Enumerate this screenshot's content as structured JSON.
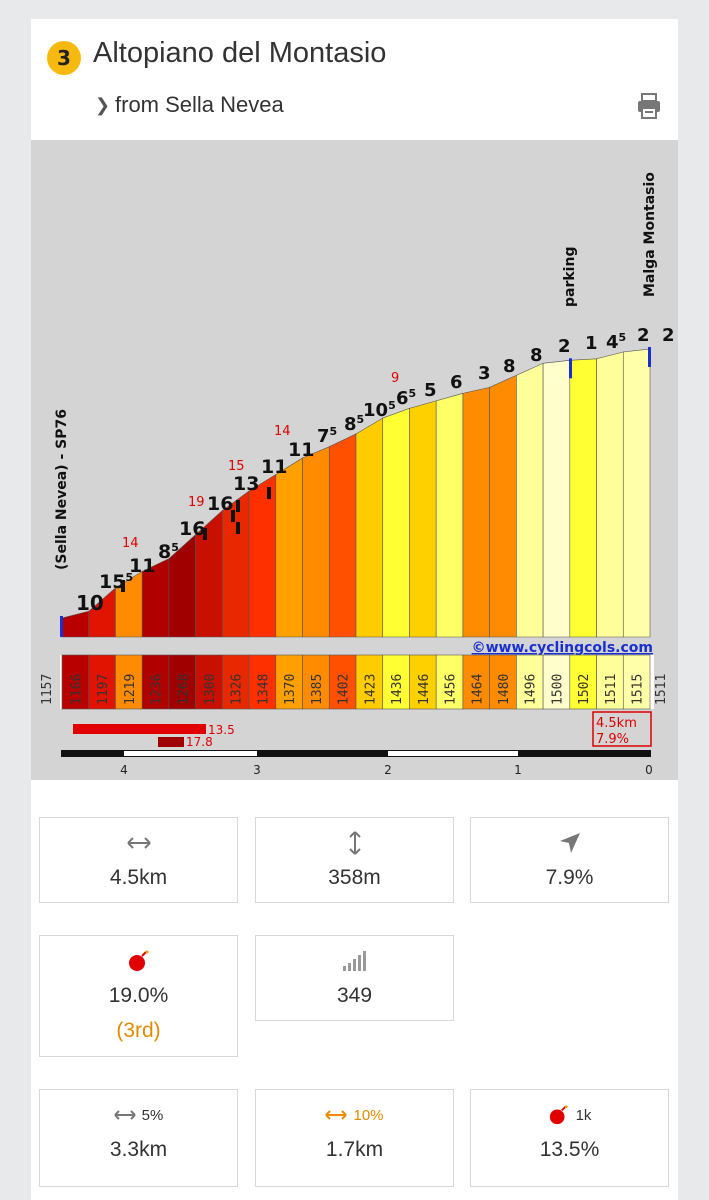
{
  "header": {
    "number": "3",
    "title": "Altopiano del Montasio",
    "subtitle": "from Sella Nevea"
  },
  "profile": {
    "start_label": "(Sella Nevea) - SP76",
    "end_label": "Malga Montasio",
    "parking_label": "parking",
    "credit": "©www.cyclingcols.com",
    "start_elev": "1157",
    "end_elev": "1511",
    "elevations": [
      "1166",
      "1197",
      "1219",
      "1236",
      "1268",
      "1300",
      "1326",
      "1348",
      "1370",
      "1385",
      "1402",
      "1423",
      "1436",
      "1446",
      "1456",
      "1464",
      "1480",
      "1496",
      "1500",
      "1502",
      "1511",
      "1515"
    ],
    "segment_colors": [
      "#b80000",
      "#e01400",
      "#ff8c00",
      "#b00000",
      "#a00000",
      "#c81000",
      "#e82800",
      "#ff3000",
      "#ffa000",
      "#ff8c00",
      "#ff5000",
      "#ffcc00",
      "#ffff33",
      "#ffd000",
      "#ffff66",
      "#ff8c00",
      "#ff8c00",
      "#ffff99",
      "#ffffcc",
      "#ffff33",
      "#ffff99",
      "#ffffaa"
    ],
    "grades": [
      {
        "t": "10",
        "x": 45,
        "y": 470,
        "c": "#111",
        "s": 20
      },
      {
        "t": "15",
        "sup": "5",
        "x": 68,
        "y": 448,
        "c": "#111",
        "s": 19
      },
      {
        "t": "14",
        "x": 91,
        "y": 407,
        "c": "#d00",
        "s": 13
      },
      {
        "t": "11",
        "x": 98,
        "y": 432,
        "c": "#111",
        "s": 19
      },
      {
        "t": "8",
        "sup": "5",
        "x": 127,
        "y": 418,
        "c": "#111",
        "s": 19
      },
      {
        "t": "16",
        "x": 148,
        "y": 395,
        "c": "#111",
        "s": 19
      },
      {
        "t": "19",
        "x": 157,
        "y": 366,
        "c": "#d00",
        "s": 13
      },
      {
        "t": "16",
        "x": 176,
        "y": 370,
        "c": "#111",
        "s": 19
      },
      {
        "t": "13",
        "x": 202,
        "y": 350,
        "c": "#111",
        "s": 19
      },
      {
        "t": "15",
        "x": 197,
        "y": 330,
        "c": "#d00",
        "s": 13
      },
      {
        "t": "11",
        "x": 230,
        "y": 333,
        "c": "#111",
        "s": 19
      },
      {
        "t": "14",
        "x": 243,
        "y": 295,
        "c": "#d00",
        "s": 13
      },
      {
        "t": "11",
        "x": 257,
        "y": 316,
        "c": "#111",
        "s": 19
      },
      {
        "t": "7",
        "sup": "5",
        "x": 286,
        "y": 302,
        "c": "#111",
        "s": 18
      },
      {
        "t": "8",
        "sup": "5",
        "x": 313,
        "y": 290,
        "c": "#111",
        "s": 18
      },
      {
        "t": "10",
        "sup": "5",
        "x": 332,
        "y": 276,
        "c": "#111",
        "s": 18
      },
      {
        "t": "9",
        "x": 360,
        "y": 242,
        "c": "#d00",
        "s": 13
      },
      {
        "t": "6",
        "sup": "5",
        "x": 365,
        "y": 264,
        "c": "#111",
        "s": 18
      },
      {
        "t": "5",
        "x": 393,
        "y": 256,
        "c": "#111",
        "s": 18
      },
      {
        "t": "6",
        "x": 419,
        "y": 248,
        "c": "#111",
        "s": 18
      },
      {
        "t": "3",
        "x": 447,
        "y": 239,
        "c": "#111",
        "s": 18
      },
      {
        "t": "8",
        "x": 472,
        "y": 232,
        "c": "#111",
        "s": 18
      },
      {
        "t": "8",
        "x": 499,
        "y": 221,
        "c": "#111",
        "s": 18
      },
      {
        "t": "2",
        "x": 527,
        "y": 212,
        "c": "#111",
        "s": 18
      },
      {
        "t": "1",
        "x": 554,
        "y": 209,
        "c": "#111",
        "s": 18
      },
      {
        "t": "4",
        "sup": "5",
        "x": 575,
        "y": 208,
        "c": "#111",
        "s": 18
      },
      {
        "t": "2",
        "x": 606,
        "y": 201,
        "c": "#111",
        "s": 18
      },
      {
        "t": "2",
        "x": 631,
        "y": 201,
        "c": "#111",
        "s": 18
      }
    ],
    "steepest_1": "13.5",
    "steepest_2": "17.8",
    "summary_line1": "4.5km",
    "summary_line2": "7.9%",
    "km_ticks": [
      "4",
      "3",
      "2",
      "1",
      "0"
    ]
  },
  "stats": {
    "distance": "4.5km",
    "height_gain": "358m",
    "avg_grade": "7.9%",
    "max_grade": "19.0%",
    "max_grade_rank": "(3rd)",
    "profile_index": "349",
    "over5_label": "5%",
    "over5_value": "3.3km",
    "over10_label": "10%",
    "over10_value": "1.7km",
    "steepest1k_label": "1k",
    "steepest1k_value": "13.5%"
  },
  "colors": {
    "badge": "#f5b90f",
    "rank": "#e08a00",
    "bomb": "#e00000",
    "accent_orange": "#f08a00"
  }
}
